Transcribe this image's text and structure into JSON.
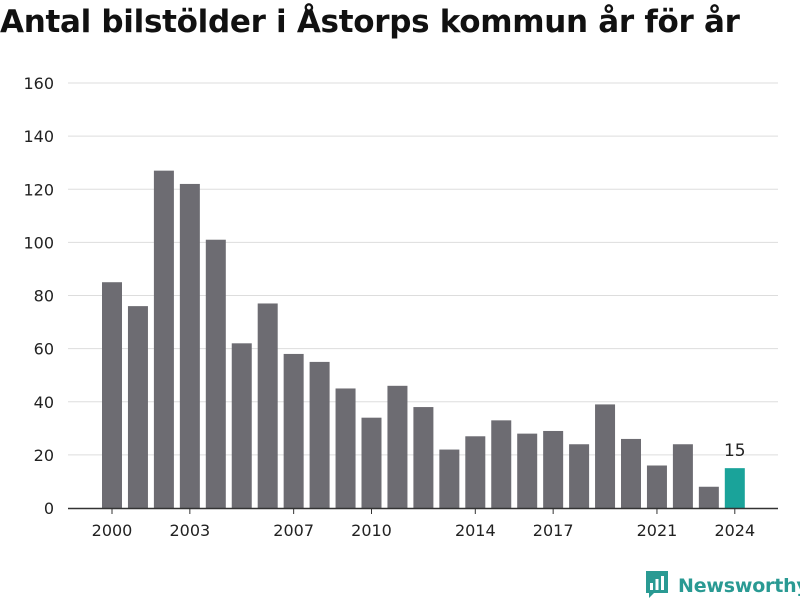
{
  "colors": {
    "bar": "#6d6c72",
    "highlight": "#1aa39a",
    "grid": "#dddddd",
    "text": "#222222",
    "brand": "#2a9a93"
  },
  "brand": {
    "name": "Newsworthy",
    "icon": "newsworthy-logo-icon"
  },
  "chart_data": {
    "type": "bar",
    "title": "Antal bilstölder i Åstorps kommun år för år",
    "xlabel": "",
    "ylabel": "",
    "ylim": [
      0,
      160
    ],
    "yticks": [
      0,
      20,
      40,
      60,
      80,
      100,
      120,
      140,
      160
    ],
    "grid": true,
    "categories": [
      "2000",
      "2001",
      "2002",
      "2003",
      "2004",
      "2005",
      "2006",
      "2007",
      "2008",
      "2009",
      "2010",
      "2011",
      "2012",
      "2013",
      "2014",
      "2015",
      "2016",
      "2017",
      "2018",
      "2019",
      "2020",
      "2021",
      "2022",
      "2023",
      "2024"
    ],
    "values": [
      85,
      76,
      127,
      122,
      101,
      62,
      77,
      58,
      55,
      45,
      34,
      46,
      38,
      22,
      27,
      33,
      28,
      29,
      24,
      39,
      26,
      16,
      24,
      8,
      15
    ],
    "xtick_labels": [
      "2000",
      "2003",
      "2007",
      "2010",
      "2014",
      "2017",
      "2021",
      "2024"
    ],
    "highlight": {
      "category": "2024",
      "label": "15"
    }
  }
}
